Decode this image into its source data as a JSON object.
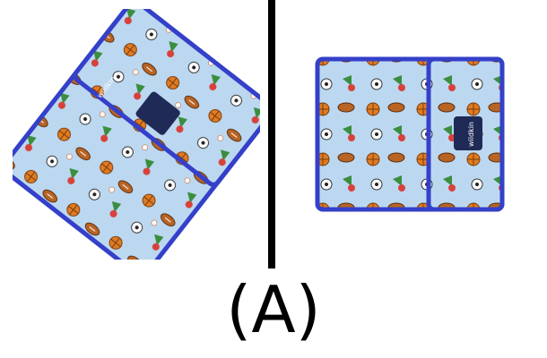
{
  "caption": "(A)",
  "images": [
    {
      "name": "sports-snack-bag-front",
      "logo_text": "wildkin"
    },
    {
      "name": "sports-snack-bag-folded",
      "logo_text": "wildkin"
    }
  ],
  "colors": {
    "fabric": "#b8d6f0",
    "binding": "#3440c9",
    "logo_bg": "#1f2b56",
    "divider": "#000000"
  }
}
